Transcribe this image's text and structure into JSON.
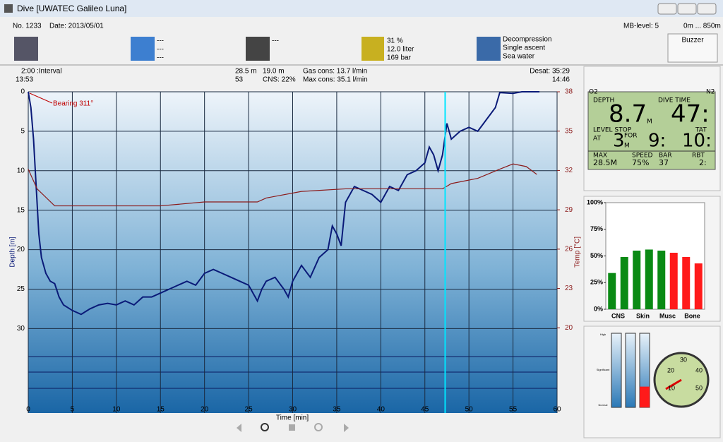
{
  "window": {
    "title": "Dive  [UWATEC Galileo Luna]"
  },
  "header": {
    "number": "No. 1233",
    "date": "Date: 2013/05/01",
    "mb_level": "MB-level: 5",
    "altitude": "0m ... 850m",
    "tile1": [
      "---",
      "---",
      "---"
    ],
    "tile2": [
      "---"
    ],
    "tile3": [
      "31 %",
      "12.0 liter",
      "169 bar"
    ],
    "tile4": [
      "Decompression",
      "Single ascent",
      "Sea water"
    ],
    "buzzer": "Buzzer"
  },
  "stats": {
    "interval": "2:00",
    "interval_label": ":Interval",
    "start_time": "13:53",
    "max_depth": "28.5 m",
    "avg_depth": "19.0 m",
    "dive_time": "53",
    "cns": "CNS: 22%",
    "gas_cons": "Gas cons: 13.7 l/min",
    "max_cons": "Max cons: 35.1 l/min",
    "desat": "Desat: 35:29",
    "end_time": "14:46"
  },
  "chart_data": [
    {
      "type": "line",
      "x_label": "Time [min]",
      "y_label": "Depth [m]",
      "y2_label": "Temp [°C]",
      "annotation": "Bearing 311°",
      "xlim": [
        0,
        60
      ],
      "xticks": [
        0,
        5,
        10,
        15,
        20,
        25,
        30,
        35,
        40,
        45,
        50,
        55,
        60
      ],
      "ylim": [
        0,
        40.7
      ],
      "yticks": [
        0,
        5,
        10,
        15,
        20,
        25,
        30
      ],
      "y_inverted": true,
      "y2lim": [
        13.5,
        38
      ],
      "y2ticks": [
        20,
        23,
        26,
        29,
        32,
        35,
        38
      ],
      "grid": true,
      "cursor": 47.3,
      "series": [
        {
          "name": "Depth",
          "color": "#0a1a78",
          "x": [
            0,
            0.3,
            0.6,
            0.9,
            1.2,
            1.5,
            2,
            2.5,
            3,
            3.5,
            4,
            5,
            6,
            7,
            8,
            9,
            10,
            11,
            12,
            13,
            14,
            15,
            16,
            17,
            18,
            19,
            20,
            21,
            22,
            23,
            24,
            25,
            26,
            26.5,
            27,
            28,
            29,
            29.5,
            30,
            31,
            32,
            33,
            34,
            34.5,
            35,
            35.5,
            36,
            37,
            38,
            39,
            40,
            41,
            42,
            43,
            44,
            45,
            45.5,
            46,
            46.5,
            47,
            47.5,
            48,
            49,
            50,
            51,
            52,
            53,
            53.5,
            55,
            56,
            58
          ],
          "values": [
            0,
            2,
            6,
            12,
            18,
            21,
            23,
            24,
            24.3,
            26,
            27,
            27.7,
            28.2,
            27.5,
            27,
            26.8,
            27,
            26.5,
            27,
            26,
            26,
            25.5,
            25,
            24.5,
            24,
            24.5,
            23,
            22.5,
            23,
            23.5,
            24,
            24.5,
            26.5,
            25,
            24,
            23.5,
            25,
            26,
            24,
            22,
            23.5,
            21,
            20,
            17,
            18,
            19.5,
            14,
            12,
            12.5,
            13,
            14,
            12,
            12.5,
            10.5,
            10,
            9,
            7,
            8,
            10,
            8,
            4,
            6,
            5,
            4.5,
            5,
            3.5,
            2,
            0.1,
            0.2,
            0,
            0
          ]
        },
        {
          "name": "Temp",
          "color": "#8b1a1a",
          "axis": "y2",
          "x": [
            0,
            1,
            3,
            15,
            20,
            26,
            27,
            31,
            36,
            47,
            48,
            51,
            53.5,
            55,
            56.5,
            57.7
          ],
          "values": [
            32.1,
            30.6,
            29.3,
            29.3,
            29.6,
            29.6,
            29.9,
            30.4,
            30.6,
            30.6,
            31,
            31.4,
            32.1,
            32.5,
            32.3,
            31.7
          ]
        }
      ]
    },
    {
      "type": "bar",
      "yticks": [
        {
          "value": 0,
          "label": "0%"
        },
        {
          "value": 25,
          "label": "25%"
        },
        {
          "value": 50,
          "label": "50%"
        },
        {
          "value": 75,
          "label": "75%"
        },
        {
          "value": 100,
          "label": "100%"
        }
      ],
      "ylim": [
        0,
        100
      ],
      "categories": [
        "CNS",
        null,
        "Skin",
        null,
        "Musc",
        null,
        "Bone",
        null
      ],
      "values": [
        34,
        49,
        55,
        56,
        55,
        53,
        49,
        43
      ],
      "colors": [
        "#0a8a14",
        "#0a8a14",
        "#0a8a14",
        "#0a8a14",
        "#0a8a14",
        "#ff1a1a",
        "#ff1a1a",
        "#ff1a1a"
      ]
    }
  ],
  "lcd": {
    "o2": "O2",
    "n2": "N2",
    "depth_label": "DEPTH",
    "depth": "8.7",
    "depth_unit": "M",
    "time_label": "DIVE TIME",
    "time": "47:",
    "level_stop": "LEVEL STOP",
    "at": "AT",
    "stop_depth": "3",
    "for": "FOR",
    "stop_unit": "M",
    "stop_time": "9:",
    "tat_label": "TAT",
    "tat": "10:",
    "max_label": "MAX",
    "max": "28.5M",
    "speed_label": "SPEED",
    "speed": "75%",
    "bar_label": "BAR",
    "bar": "37",
    "rbt_label": "RBT",
    "rbt": "2:"
  },
  "gauges": {
    "levels": [
      "High",
      "Significant",
      "Normal"
    ],
    "fills": [
      0,
      0,
      28
    ],
    "dial": [
      "20",
      "30",
      "40",
      "50",
      "10"
    ]
  }
}
